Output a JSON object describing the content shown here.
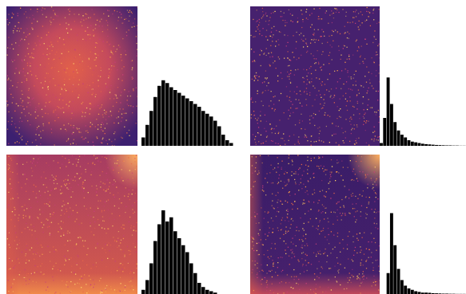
{
  "chart_data": [
    {
      "type": "histogram",
      "color": "#000000",
      "xlim": [
        0,
        100
      ],
      "ylim": [
        0,
        100
      ],
      "tick_labels": false,
      "bins": [
        0,
        4,
        8,
        12,
        16,
        20,
        24,
        28,
        32,
        36,
        40,
        44,
        48,
        52,
        56,
        60,
        64,
        68,
        72,
        76,
        80,
        84,
        88,
        92,
        96,
        100
      ],
      "values": [
        0,
        6,
        15,
        25,
        35,
        43,
        47,
        45,
        42,
        40,
        38,
        36,
        34,
        32,
        30,
        28,
        25,
        23,
        21,
        18,
        14,
        8,
        4,
        2,
        0
      ]
    },
    {
      "type": "histogram",
      "color": "#000000",
      "xlim": [
        0,
        100
      ],
      "ylim": [
        0,
        100
      ],
      "tick_labels": false,
      "bins": [
        0,
        4,
        8,
        12,
        16,
        20,
        24,
        28,
        32,
        36,
        40,
        44,
        48,
        52,
        56,
        60,
        64,
        68,
        72,
        76,
        80,
        84,
        88,
        92,
        96,
        100
      ],
      "values": [
        2,
        20,
        49,
        30,
        17,
        11,
        8,
        6,
        4,
        3,
        2.5,
        2,
        1.5,
        1.2,
        1,
        0.8,
        0.6,
        0.5,
        0.4,
        0.3,
        0.3,
        0.2,
        0.2,
        0.1,
        0.1
      ]
    },
    {
      "type": "histogram",
      "color": "#000000",
      "xlim": [
        0,
        100
      ],
      "ylim": [
        0,
        100
      ],
      "tick_labels": false,
      "bins": [
        0,
        4,
        8,
        12,
        16,
        20,
        24,
        28,
        32,
        36,
        40,
        44,
        48,
        52,
        56,
        60,
        64,
        68,
        72,
        76,
        80,
        84,
        88,
        92,
        96,
        100
      ],
      "values": [
        0,
        3,
        10,
        22,
        38,
        50,
        60,
        52,
        55,
        45,
        40,
        35,
        30,
        22,
        15,
        8,
        5,
        3,
        2,
        1,
        0,
        0,
        0,
        0,
        0
      ]
    },
    {
      "type": "histogram",
      "color": "#000000",
      "xlim": [
        0,
        100
      ],
      "ylim": [
        0,
        100
      ],
      "tick_labels": false,
      "bins": [
        0,
        4,
        8,
        12,
        16,
        20,
        24,
        28,
        32,
        36,
        40,
        44,
        48,
        52,
        56,
        60,
        64,
        68,
        72,
        76,
        80,
        84,
        88,
        92,
        96,
        100
      ],
      "values": [
        0,
        0,
        15,
        58,
        35,
        18,
        10,
        6,
        4,
        3,
        2,
        1.5,
        1,
        1,
        0.8,
        0.6,
        0.5,
        0.4,
        0.3,
        0.3,
        0.2,
        0.2,
        0.1,
        0.1,
        0.1
      ]
    }
  ]
}
